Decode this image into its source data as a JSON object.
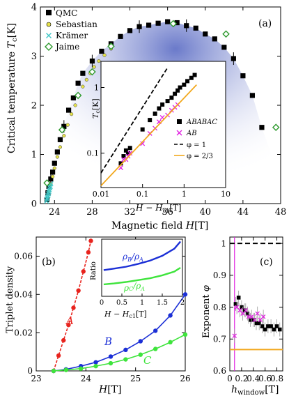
{
  "chart_data": [
    {
      "type": "scatter",
      "panel": "(a)",
      "xlabel": "Magnetic field H[T]",
      "ylabel": "Critical temperature Tc[K]",
      "xlim": [
        22.5,
        48
      ],
      "ylim": [
        0,
        4
      ],
      "xticks": [
        "24",
        "28",
        "32",
        "36",
        "40",
        "44",
        "48"
      ],
      "yticks": [
        "0",
        "1",
        "2",
        "3",
        "4"
      ],
      "legend_position": "top-left",
      "series": [
        {
          "name": "QMC",
          "marker": "square",
          "color": "#000000",
          "x": [
            23.2,
            23.3,
            23.4,
            23.6,
            23.8,
            24.0,
            24.3,
            24.6,
            25.0,
            25.5,
            26.0,
            26.5,
            27.0,
            28.0,
            29.0,
            30.0,
            31.0,
            32.0,
            33.0,
            34.0,
            35.0,
            36.0,
            37.0,
            38.0,
            39.0,
            40.0,
            41.0,
            42.0,
            43.0,
            44.0,
            45.0,
            46.0
          ],
          "y": [
            0.08,
            0.22,
            0.35,
            0.5,
            0.64,
            0.82,
            1.05,
            1.3,
            1.57,
            1.9,
            2.15,
            2.45,
            2.65,
            2.9,
            3.1,
            3.25,
            3.4,
            3.52,
            3.6,
            3.63,
            3.67,
            3.7,
            3.68,
            3.62,
            3.57,
            3.45,
            3.35,
            3.18,
            2.95,
            2.6,
            2.2,
            1.55
          ]
        },
        {
          "name": "Sebastian",
          "marker": "circle",
          "color": "#e6e24a",
          "x": [
            23.4,
            23.6,
            23.8,
            24.0,
            24.3,
            24.6,
            25.0,
            25.4,
            25.8,
            26.2,
            26.6,
            27.0,
            27.4,
            27.8,
            28.2,
            28.7,
            29.3,
            30.0
          ],
          "y": [
            0.25,
            0.4,
            0.55,
            0.72,
            0.95,
            1.15,
            1.38,
            1.6,
            1.82,
            2.0,
            2.2,
            2.38,
            2.52,
            2.65,
            2.78,
            2.9,
            3.02,
            3.15
          ]
        },
        {
          "name": "Krämer",
          "marker": "x",
          "color": "#3fc6c6",
          "x": [
            23.15,
            23.2,
            23.25,
            23.3,
            23.35,
            23.4,
            23.45,
            23.5,
            23.55,
            23.6
          ],
          "y": [
            0.05,
            0.09,
            0.12,
            0.16,
            0.2,
            0.24,
            0.28,
            0.32,
            0.35,
            0.4
          ]
        },
        {
          "name": "Jaime",
          "marker": "diamond",
          "color": "#2e9a2e",
          "x": [
            23.2,
            24.8,
            26.5,
            28.0,
            30.0,
            36.6,
            42.2,
            47.5
          ],
          "y": [
            0.42,
            1.5,
            2.2,
            2.68,
            3.2,
            3.66,
            3.45,
            1.55
          ]
        }
      ]
    },
    {
      "type": "line",
      "panel": "inset (a)",
      "xscale": "log",
      "yscale": "log",
      "xlabel": "H − Hc1 [T]",
      "ylabel": "Tc[K]",
      "xlim": [
        0.01,
        10
      ],
      "ylim": [
        0.03,
        2.5
      ],
      "xticks": [
        "0.01",
        "0.1",
        "1",
        "10"
      ],
      "yticks": [
        "0.1",
        "1"
      ],
      "series": [
        {
          "name": "ABABAC",
          "marker": "square",
          "color": "#000000",
          "x": [
            0.03,
            0.035,
            0.04,
            0.045,
            0.05,
            0.1,
            0.15,
            0.2,
            0.25,
            0.3,
            0.4,
            0.5,
            0.6,
            0.7,
            0.8,
            1.0,
            1.2,
            1.5,
            1.8
          ],
          "y": [
            0.07,
            0.09,
            0.11,
            0.1,
            0.12,
            0.23,
            0.32,
            0.4,
            0.48,
            0.55,
            0.62,
            0.7,
            0.8,
            0.9,
            1.0,
            1.1,
            1.25,
            1.4,
            1.55
          ]
        },
        {
          "name": "AB",
          "marker": "x",
          "color": "#e020e0",
          "x": [
            0.03,
            0.035,
            0.04,
            0.045,
            0.05,
            0.1,
            0.15,
            0.2,
            0.25,
            0.3,
            0.4,
            0.5,
            0.6,
            0.7
          ],
          "y": [
            0.06,
            0.08,
            0.08,
            0.09,
            0.1,
            0.14,
            0.2,
            0.24,
            0.3,
            0.35,
            0.38,
            0.45,
            0.5,
            0.55
          ]
        },
        {
          "name": "φ = 1",
          "style": "dashed",
          "color": "#000000",
          "x": [
            0.01,
            0.4
          ],
          "y": [
            0.05,
            2.0
          ]
        },
        {
          "name": "φ = 2/3",
          "style": "solid",
          "color": "#f2a81d",
          "x": [
            0.01,
            2.0
          ],
          "y": [
            0.032,
            1.1
          ]
        }
      ]
    },
    {
      "type": "scatter",
      "panel": "(b)",
      "xlabel": "H[T]",
      "ylabel": "Triplet density",
      "xlim": [
        23,
        26
      ],
      "ylim": [
        0,
        0.07
      ],
      "xticks": [
        "23",
        "24",
        "25",
        "26"
      ],
      "yticks": [
        "0",
        "0.02",
        "0.04",
        "0.06"
      ],
      "series": [
        {
          "name": "A",
          "color": "#e8231d",
          "x": [
            23.35,
            23.45,
            23.55,
            23.65,
            23.75,
            23.85,
            23.95,
            24.05,
            24.1
          ],
          "y": [
            0.0,
            0.008,
            0.016,
            0.024,
            0.033,
            0.042,
            0.052,
            0.062,
            0.068
          ]
        },
        {
          "name": "B",
          "color": "#1b2fd6",
          "x": [
            23.35,
            23.6,
            23.9,
            24.2,
            24.5,
            24.8,
            25.1,
            25.4,
            25.7,
            26.0
          ],
          "y": [
            0.0,
            0.0008,
            0.0025,
            0.0045,
            0.0075,
            0.011,
            0.0155,
            0.021,
            0.029,
            0.04
          ]
        },
        {
          "name": "C",
          "color": "#3ee43c",
          "x": [
            23.35,
            23.6,
            23.9,
            24.2,
            24.5,
            24.8,
            25.1,
            25.4,
            25.7,
            26.0
          ],
          "y": [
            0.0,
            0.0005,
            0.0012,
            0.0025,
            0.004,
            0.006,
            0.0085,
            0.0115,
            0.015,
            0.019
          ]
        }
      ]
    },
    {
      "type": "line",
      "panel": "inset (b)",
      "xlabel": "H − Hc1 [T]",
      "ylabel": "Ratio",
      "xlim": [
        0,
        2
      ],
      "xticks": [
        "0",
        "0.5",
        "1",
        "1.5",
        "2"
      ],
      "series": [
        {
          "name": "ρB/ρA",
          "color": "#1b2fd6",
          "x": [
            0.05,
            0.3,
            0.6,
            0.9,
            1.2,
            1.5,
            1.8,
            1.95
          ],
          "y": [
            0.55,
            0.58,
            0.62,
            0.68,
            0.75,
            0.85,
            1.0,
            1.15
          ]
        },
        {
          "name": "ρC/ρA",
          "color": "#3ee43c",
          "x": [
            0.05,
            0.3,
            0.6,
            0.9,
            1.2,
            1.5,
            1.8,
            1.95
          ],
          "y": [
            0.25,
            0.27,
            0.3,
            0.34,
            0.38,
            0.44,
            0.52,
            0.6
          ]
        }
      ]
    },
    {
      "type": "scatter",
      "panel": "(c)",
      "xlabel": "hwindow [T]",
      "ylabel": "Exponent φ",
      "xlim": [
        0,
        0.9
      ],
      "ylim": [
        0.6,
        1.02
      ],
      "xticks": [
        "0",
        "0.2",
        "0.4",
        "0.6",
        "0.8"
      ],
      "yticks": [
        "0.6",
        "0.7",
        "0.8",
        "0.9",
        "1"
      ],
      "series": [
        {
          "name": "ABABAC",
          "marker": "square",
          "color": "#000000",
          "x": [
            0.1,
            0.15,
            0.2,
            0.25,
            0.3,
            0.35,
            0.4,
            0.45,
            0.5,
            0.55,
            0.6,
            0.65,
            0.7,
            0.75,
            0.8,
            0.85
          ],
          "y": [
            0.81,
            0.83,
            0.8,
            0.79,
            0.78,
            0.76,
            0.76,
            0.75,
            0.75,
            0.74,
            0.73,
            0.74,
            0.74,
            0.73,
            0.74,
            0.73
          ]
        },
        {
          "name": "AB",
          "marker": "x",
          "color": "#e020e0",
          "x": [
            0.08,
            0.12,
            0.17,
            0.22,
            0.27,
            0.32,
            0.37,
            0.42,
            0.47,
            0.52,
            0.57
          ],
          "y": [
            0.71,
            0.8,
            0.79,
            0.78,
            0.79,
            0.77,
            0.77,
            0.76,
            0.78,
            0.76,
            0.77
          ]
        },
        {
          "name": "φ = 1",
          "style": "dashed",
          "color": "#000000",
          "x": [
            0,
            0.9
          ],
          "y": [
            1.0,
            1.0
          ]
        },
        {
          "name": "φ = 2/3",
          "style": "solid",
          "color": "#f2a81d",
          "x": [
            0,
            0.9
          ],
          "y": [
            0.667,
            0.667
          ]
        }
      ]
    }
  ],
  "labels": {
    "panel_a": "(a)",
    "panel_b": "(b)",
    "panel_c": "(c)",
    "a_xlabel": "Magnetic field",
    "a_xlabel_var": "H",
    "a_xlabel_unit": "[T]",
    "a_ylabel": "Critical temperature",
    "a_ylabel_var": "T",
    "a_ylabel_sub": "c",
    "a_ylabel_unit": "[K]",
    "inset_a_xlabel_var": "H − H",
    "inset_a_xlabel_sub": "c1",
    "inset_a_xlabel_unit": "[T]",
    "inset_a_ylabel_var": "T",
    "inset_a_ylabel_sub": "c",
    "inset_a_ylabel_unit": "[K]",
    "b_xlabel_var": "H",
    "b_xlabel_unit": "[T]",
    "b_ylabel": "Triplet density",
    "inset_b_ylabel": "Ratio",
    "inset_b_xlabel_var": "H − H",
    "inset_b_xlabel_sub": "c1",
    "inset_b_xlabel_unit": "[T]",
    "c_xlabel_var": "h",
    "c_xlabel_sub": "window",
    "c_xlabel_unit": "[T]",
    "c_ylabel": "Exponent",
    "c_ylabel_var": "φ",
    "curve_a": "A",
    "curve_b": "B",
    "curve_c": "C",
    "ratio_b": "ρ",
    "ratio_b_num": "B",
    "ratio_b_den": "A",
    "ratio_c_num": "C",
    "legend_a": [
      "QMC",
      "Sebastian",
      "Krämer",
      "Jaime"
    ],
    "legend_inset": [
      "ABABAC",
      "AB",
      "φ = 1",
      "φ = 2/3"
    ]
  },
  "colors": {
    "qmc": "#000000",
    "sebastian": "#e6e24a",
    "kramer": "#3fc6c6",
    "jaime": "#2e9a2e",
    "ab_magenta": "#e020e0",
    "orange": "#f2a81d",
    "red": "#e8231d",
    "blue": "#1b2fd6",
    "green": "#3ee43c",
    "dome_fill": "#9aa7da"
  }
}
